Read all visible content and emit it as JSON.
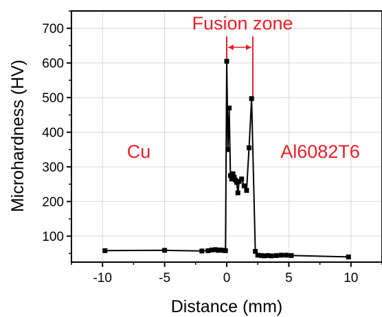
{
  "chart_data": {
    "type": "line",
    "title": "",
    "xlabel": "Distance (mm)",
    "ylabel": "Microhardness (HV)",
    "xlim": [
      -12.5,
      12.5
    ],
    "ylim": [
      25,
      750
    ],
    "x_ticks": [
      -10,
      -5,
      0,
      5,
      10
    ],
    "y_ticks": [
      100,
      200,
      300,
      400,
      500,
      600,
      700
    ],
    "grid": true,
    "line_color": "#000000",
    "marker": "square",
    "series": [
      {
        "x": [
          -9.8,
          -5.0,
          -2.0,
          -1.5,
          -1.2,
          -0.9,
          -0.7,
          -0.5,
          -0.3,
          -0.1,
          0.0,
          0.1,
          0.2,
          0.3,
          0.4,
          0.5,
          0.6,
          0.7,
          0.8,
          0.9,
          1.0,
          1.2,
          1.4,
          1.6,
          1.8,
          2.0,
          2.3,
          2.5,
          2.8,
          3.0,
          3.3,
          3.6,
          4.0,
          4.4,
          4.8,
          5.2,
          9.8
        ],
        "y": [
          58,
          59,
          57,
          58,
          60,
          61,
          59,
          60,
          59,
          58,
          605,
          350,
          470,
          275,
          265,
          280,
          270,
          262,
          255,
          225,
          258,
          265,
          245,
          232,
          355,
          497,
          56,
          45,
          44,
          43,
          44,
          43,
          44,
          45,
          45,
          44,
          40
        ]
      }
    ]
  },
  "annotations": {
    "fusion_zone": "Fusion zone",
    "left_material": "Cu",
    "right_material": "Al6082T6"
  },
  "colors": {
    "annotation": "#e8202a",
    "grid": "#d9d9d9"
  }
}
